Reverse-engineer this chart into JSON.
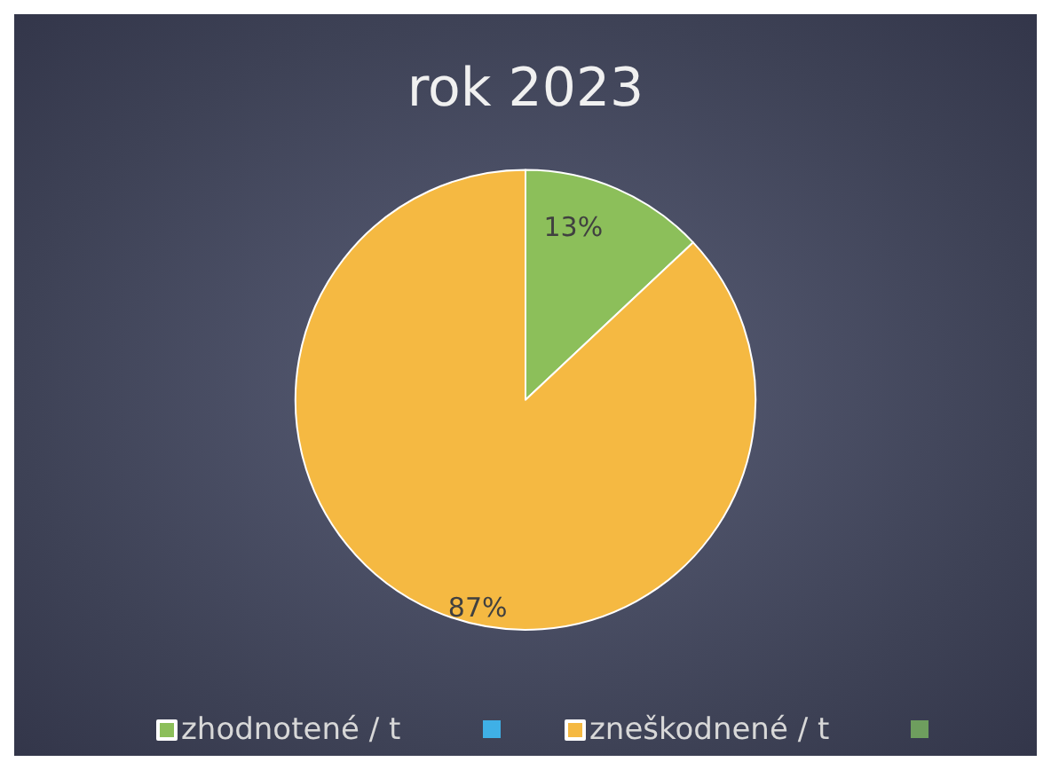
{
  "chart_data": {
    "type": "pie",
    "title": "rok 2023",
    "categories": [
      "zhodnotené / t",
      "zneškodnené / t"
    ],
    "values": [
      13,
      87
    ],
    "colors": [
      "#8cbf5a",
      "#f5b942"
    ],
    "value_labels": [
      "13%",
      "87%"
    ],
    "legend": "bottom"
  }
}
